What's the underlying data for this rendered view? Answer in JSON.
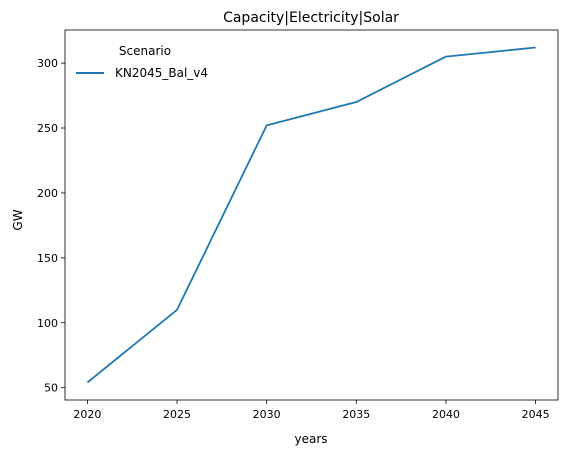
{
  "chart_data": {
    "type": "line",
    "title": "Capacity|Electricity|Solar",
    "xlabel": "years",
    "ylabel": "GW",
    "x": [
      2020,
      2025,
      2030,
      2035,
      2040,
      2045
    ],
    "series": [
      {
        "name": "KN2045_Bal_v4",
        "values": [
          54,
          110,
          252,
          270,
          305,
          312
        ],
        "color": "#1f77b4"
      }
    ],
    "xticks": [
      2020,
      2025,
      2030,
      2035,
      2040,
      2045
    ],
    "yticks": [
      50,
      100,
      150,
      200,
      250,
      300
    ],
    "xlim": [
      2018.75,
      2046.25
    ],
    "ylim": [
      40.5,
      325.5
    ],
    "grid": false,
    "legend": {
      "title": "Scenario",
      "position": "upper-left"
    }
  }
}
